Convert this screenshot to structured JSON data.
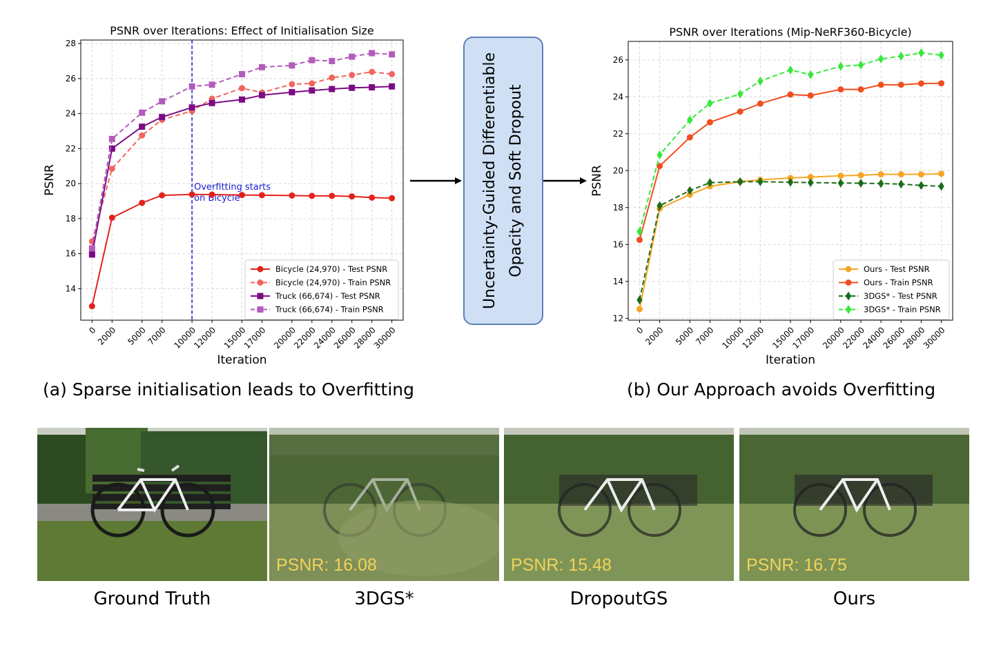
{
  "chart_data": [
    {
      "type": "line",
      "title": "PSNR over Iterations: Effect of Initialisation Size",
      "xlabel": "Iteration",
      "ylabel": "PSNR",
      "ylim": [
        12.2,
        28.2
      ],
      "yticks": [
        14,
        16,
        18,
        20,
        22,
        24,
        26,
        28
      ],
      "x": [
        0,
        2000,
        5000,
        7000,
        10000,
        12000,
        15000,
        17000,
        20000,
        22000,
        24000,
        26000,
        28000,
        30000
      ],
      "xtick_labels": [
        "0",
        "2000",
        "5000",
        "7000",
        "10000",
        "12000",
        "15000",
        "17000",
        "20000",
        "22000",
        "24000",
        "26000",
        "28000",
        "30000"
      ],
      "grid": true,
      "legend_position": "bottom-right",
      "series": [
        {
          "name": "Bicycle (24,970) - Test PSNR",
          "color": "#e3211c",
          "dash": "solid",
          "marker": "circle",
          "values": [
            13.0,
            18.05,
            18.9,
            19.33,
            19.38,
            19.37,
            19.35,
            19.34,
            19.32,
            19.3,
            19.3,
            19.27,
            19.2,
            19.17
          ]
        },
        {
          "name": "Bicycle (24,970) - Train PSNR",
          "color": "#f0665e",
          "dash": "dashed",
          "marker": "circle",
          "values": [
            16.7,
            20.85,
            22.75,
            23.65,
            24.15,
            24.85,
            25.45,
            25.2,
            25.68,
            25.72,
            26.05,
            26.2,
            26.38,
            26.25
          ]
        },
        {
          "name": "Truck (66,674) - Test PSNR",
          "color": "#7b0b84",
          "dash": "solid",
          "marker": "square",
          "values": [
            15.95,
            22.0,
            23.25,
            23.8,
            24.35,
            24.6,
            24.8,
            25.05,
            25.22,
            25.32,
            25.4,
            25.47,
            25.5,
            25.55
          ]
        },
        {
          "name": "Truck (66,674) - Train PSNR",
          "color": "#b25cbc",
          "dash": "dashed",
          "marker": "square",
          "values": [
            16.3,
            22.55,
            24.05,
            24.7,
            25.55,
            25.65,
            26.25,
            26.65,
            26.75,
            27.05,
            27.0,
            27.25,
            27.45,
            27.38
          ]
        }
      ],
      "annotation": {
        "text_line1": "Overfitting starts",
        "text_line2": "on Bicycle",
        "x": 10000,
        "color": "#1a1ad6"
      }
    },
    {
      "type": "line",
      "title": "PSNR over Iterations (Mip-NeRF360-Bicycle)",
      "xlabel": "Iteration",
      "ylabel": "PSNR",
      "ylim": [
        11.9,
        27.0
      ],
      "yticks": [
        12,
        14,
        16,
        18,
        20,
        22,
        24,
        26
      ],
      "x": [
        0,
        2000,
        5000,
        7000,
        10000,
        12000,
        15000,
        17000,
        20000,
        22000,
        24000,
        26000,
        28000,
        30000
      ],
      "xtick_labels": [
        "0",
        "2000",
        "5000",
        "7000",
        "10000",
        "12000",
        "15000",
        "17000",
        "20000",
        "22000",
        "24000",
        "26000",
        "28000",
        "30000"
      ],
      "grid": true,
      "legend_position": "bottom-right",
      "series": [
        {
          "name": "Ours - Test PSNR",
          "color": "#f5a623",
          "dash": "solid",
          "marker": "circle",
          "values": [
            12.5,
            17.95,
            18.7,
            19.15,
            19.4,
            19.5,
            19.6,
            19.65,
            19.72,
            19.75,
            19.8,
            19.8,
            19.8,
            19.83
          ]
        },
        {
          "name": "Ours - Train PSNR",
          "color": "#f04e1f",
          "dash": "solid",
          "marker": "circle",
          "values": [
            16.25,
            20.25,
            21.8,
            22.62,
            23.2,
            23.63,
            24.12,
            24.07,
            24.4,
            24.4,
            24.65,
            24.65,
            24.72,
            24.73
          ]
        },
        {
          "name": "3DGS* - Test PSNR",
          "color": "#1b6d1b",
          "dash": "dashed",
          "marker": "diamond",
          "values": [
            13.0,
            18.1,
            18.92,
            19.35,
            19.4,
            19.4,
            19.37,
            19.35,
            19.33,
            19.32,
            19.3,
            19.27,
            19.2,
            19.15
          ]
        },
        {
          "name": "3DGS* - Train PSNR",
          "color": "#36e83a",
          "dash": "dashed",
          "marker": "diamond",
          "values": [
            16.7,
            20.85,
            22.75,
            23.65,
            24.15,
            24.85,
            25.45,
            25.2,
            25.65,
            25.72,
            26.05,
            26.2,
            26.38,
            26.25
          ]
        }
      ]
    }
  ],
  "flow_box": {
    "line1": "Uncertainty-Guided Differentiable",
    "line2": "Opacity and Soft Dropout"
  },
  "captions": {
    "left": "(a) Sparse initialisation leads to Overfitting",
    "right": "(b) Our Approach avoids Overfitting"
  },
  "photos": [
    {
      "caption": "Ground Truth",
      "psnr": ""
    },
    {
      "caption": "3DGS*",
      "psnr": "PSNR: 16.08"
    },
    {
      "caption": "DropoutGS",
      "psnr": "PSNR: 15.48"
    },
    {
      "caption": "Ours",
      "psnr": "PSNR: 16.75"
    }
  ],
  "colors": {
    "arrow": "#000000",
    "psnr_label": "#f2d35a",
    "box_fill": "#cfe0f5",
    "box_border": "#5b81b5"
  }
}
